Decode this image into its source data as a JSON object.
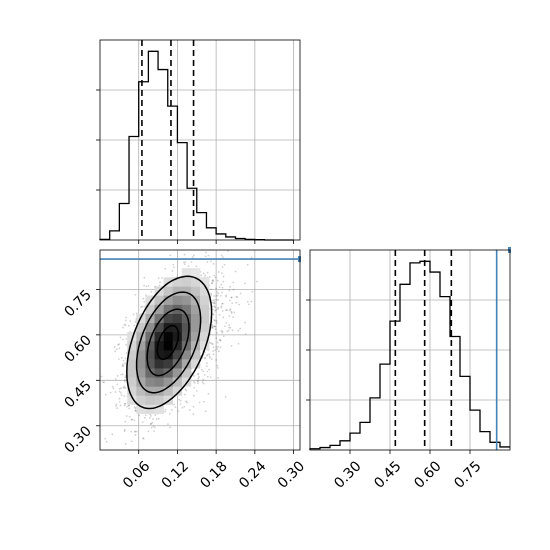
{
  "chart_data": {
    "type": "corner",
    "parameters": [
      "",
      ""
    ],
    "truth": {
      "param2": 0.85
    },
    "truth_color": "#4682b4",
    "grid": true,
    "panels": {
      "hist_param1": {
        "type": "histogram",
        "xlim": [
          0.0,
          0.31
        ],
        "bin_edges": [
          0.0,
          0.015,
          0.03,
          0.045,
          0.06,
          0.075,
          0.09,
          0.105,
          0.12,
          0.135,
          0.15,
          0.165,
          0.18,
          0.195,
          0.21,
          0.225,
          0.24,
          0.255,
          0.27,
          0.285,
          0.3
        ],
        "counts": [
          2,
          30,
          120,
          340,
          520,
          620,
          560,
          440,
          320,
          170,
          90,
          40,
          20,
          10,
          5,
          2,
          1,
          0,
          0,
          0
        ],
        "quantiles": [
          0.065,
          0.11,
          0.145
        ],
        "xticks": [
          0.06,
          0.12,
          0.18,
          0.24,
          0.3
        ]
      },
      "hist_param2": {
        "type": "histogram",
        "xlim": [
          0.15,
          0.9
        ],
        "bin_edges": [
          0.15,
          0.1875,
          0.225,
          0.2625,
          0.3,
          0.3375,
          0.375,
          0.4125,
          0.45,
          0.4875,
          0.525,
          0.5625,
          0.6,
          0.6375,
          0.675,
          0.7125,
          0.75,
          0.7875,
          0.825,
          0.8625,
          0.9
        ],
        "counts": [
          4,
          8,
          15,
          30,
          55,
          90,
          170,
          280,
          420,
          540,
          610,
          615,
          580,
          500,
          370,
          240,
          130,
          60,
          25,
          10
        ],
        "quantiles": [
          0.47,
          0.58,
          0.68
        ],
        "xticks": [
          0.3,
          0.45,
          0.6,
          0.75
        ]
      },
      "joint": {
        "type": "2d_histogram_contour",
        "xlim": [
          0.0,
          0.31
        ],
        "ylim": [
          0.22,
          0.88
        ],
        "xlabel": "",
        "ylabel": "",
        "xticks": [
          0.06,
          0.12,
          0.18,
          0.24,
          0.3
        ],
        "yticks": [
          0.3,
          0.45,
          0.6,
          0.75
        ],
        "mean": [
          0.105,
          0.575
        ],
        "sigma": [
          0.032,
          0.11
        ],
        "correlation": 0.45,
        "contour_levels": [
          0.12,
          0.39,
          0.68,
          0.86
        ]
      }
    }
  }
}
